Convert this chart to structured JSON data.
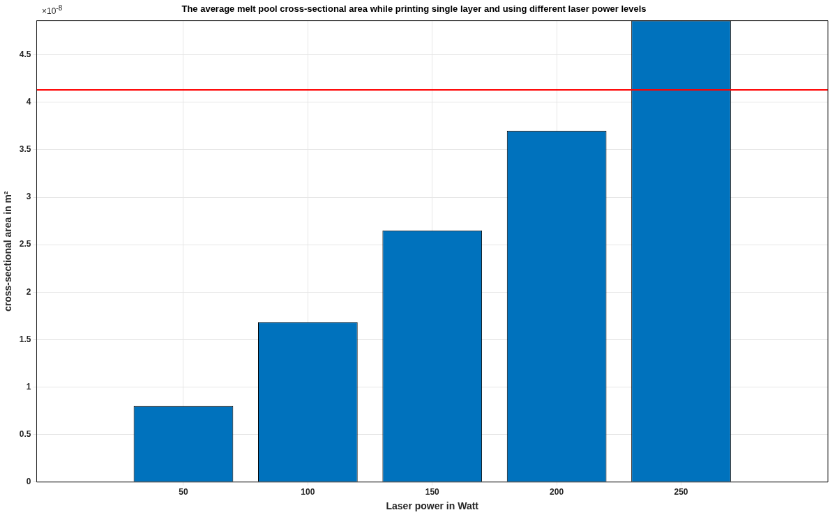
{
  "chart_data": {
    "type": "bar",
    "title": "The average melt pool cross-sectional area while printing single layer and using different laser power levels",
    "xlabel": "Laser power in Watt",
    "ylabel": "cross-sectional area in m²",
    "x": [
      50,
      100,
      150,
      200,
      250
    ],
    "values": [
      0.8,
      1.685,
      2.65,
      3.7,
      4.86
    ],
    "color": "#0072bd",
    "xlim": [
      -9,
      309
    ],
    "xticks": [
      50,
      100,
      150,
      200,
      250
    ],
    "ylim": [
      0,
      4.86
    ],
    "yticks": [
      0,
      0.5,
      1,
      1.5,
      2,
      2.5,
      3,
      3.5,
      4,
      4.5
    ],
    "ref_lines": [
      {
        "axis": "y",
        "value": 4.13,
        "color": "#ff0000"
      }
    ],
    "annotations": [
      "×10$^{-8}$"
    ],
    "grid": true,
    "legend": false
  }
}
